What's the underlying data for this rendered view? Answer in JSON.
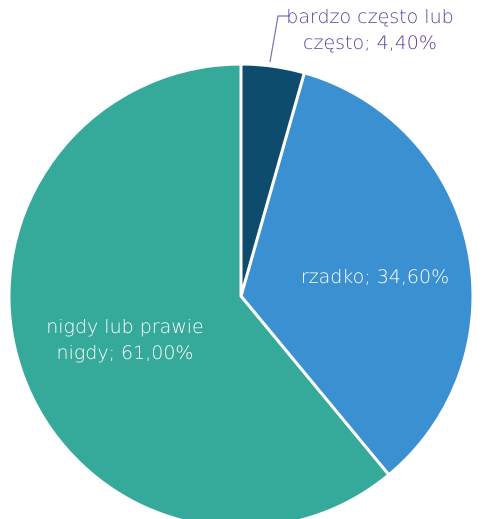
{
  "chart_data": {
    "type": "pie",
    "categories": [
      "bardzo często lub często",
      "rzadko",
      "nigdy lub prawie nigdy"
    ],
    "values": [
      4.4,
      34.6,
      61.0
    ],
    "value_labels": [
      "4,40%",
      "34,60%",
      "61,00%"
    ],
    "label_separator": "; ",
    "colors": [
      "#0d4c6c",
      "#3a90d0",
      "#35a99a"
    ],
    "label_colors": [
      "#5a3f9c",
      "#ffffff",
      "#ffffff"
    ]
  }
}
